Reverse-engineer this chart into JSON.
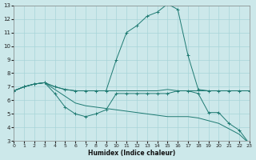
{
  "xlabel": "Humidex (Indice chaleur)",
  "xlim": [
    0,
    23
  ],
  "ylim": [
    3,
    13
  ],
  "xticks": [
    0,
    1,
    2,
    3,
    4,
    5,
    6,
    7,
    8,
    9,
    10,
    11,
    12,
    13,
    14,
    15,
    16,
    17,
    18,
    19,
    20,
    21,
    22,
    23
  ],
  "yticks": [
    3,
    4,
    5,
    6,
    7,
    8,
    9,
    10,
    11,
    12,
    13
  ],
  "bg_color": "#cce8ea",
  "grid_color": "#a8d4d8",
  "line_color": "#1e7a72",
  "curves": [
    {
      "x": [
        0,
        1,
        2,
        3,
        4,
        5,
        6,
        7,
        8,
        9,
        10,
        11,
        12,
        13,
        14,
        15,
        16,
        17,
        18,
        19,
        20,
        21,
        22,
        23
      ],
      "y": [
        6.7,
        7.0,
        7.2,
        7.3,
        7.0,
        6.8,
        6.7,
        6.7,
        6.7,
        6.7,
        6.7,
        6.7,
        6.7,
        6.7,
        6.7,
        6.8,
        6.7,
        6.7,
        6.7,
        6.7,
        6.7,
        6.7,
        6.7,
        6.7
      ],
      "marker": false
    },
    {
      "x": [
        0,
        1,
        2,
        3,
        4,
        5,
        6,
        7,
        8,
        9,
        10,
        11,
        12,
        13,
        14,
        15,
        16,
        17,
        18,
        19,
        20,
        21,
        22,
        23
      ],
      "y": [
        6.7,
        7.0,
        7.2,
        7.3,
        7.0,
        6.8,
        6.7,
        6.7,
        6.7,
        6.7,
        9.0,
        11.0,
        11.5,
        12.2,
        12.5,
        13.1,
        12.7,
        9.3,
        6.8,
        6.7,
        6.7,
        6.7,
        6.7,
        6.7
      ],
      "marker": true
    },
    {
      "x": [
        0,
        1,
        2,
        3,
        4,
        5,
        6,
        7,
        8,
        9,
        10,
        11,
        12,
        13,
        14,
        15,
        16,
        17,
        18,
        19,
        20,
        21,
        22,
        23
      ],
      "y": [
        6.7,
        7.0,
        7.2,
        7.3,
        6.5,
        5.5,
        5.0,
        4.8,
        5.0,
        5.3,
        6.5,
        6.5,
        6.5,
        6.5,
        6.5,
        6.5,
        6.7,
        6.7,
        6.5,
        5.1,
        5.1,
        4.3,
        3.8,
        2.8
      ],
      "marker": true
    },
    {
      "x": [
        0,
        1,
        2,
        3,
        4,
        5,
        6,
        7,
        8,
        9,
        10,
        11,
        12,
        13,
        14,
        15,
        16,
        17,
        18,
        19,
        20,
        21,
        22,
        23
      ],
      "y": [
        6.7,
        7.0,
        7.2,
        7.3,
        6.8,
        6.3,
        5.8,
        5.6,
        5.5,
        5.4,
        5.3,
        5.2,
        5.1,
        5.0,
        4.9,
        4.8,
        4.8,
        4.8,
        4.7,
        4.5,
        4.3,
        3.9,
        3.5,
        2.8
      ],
      "marker": false
    }
  ]
}
